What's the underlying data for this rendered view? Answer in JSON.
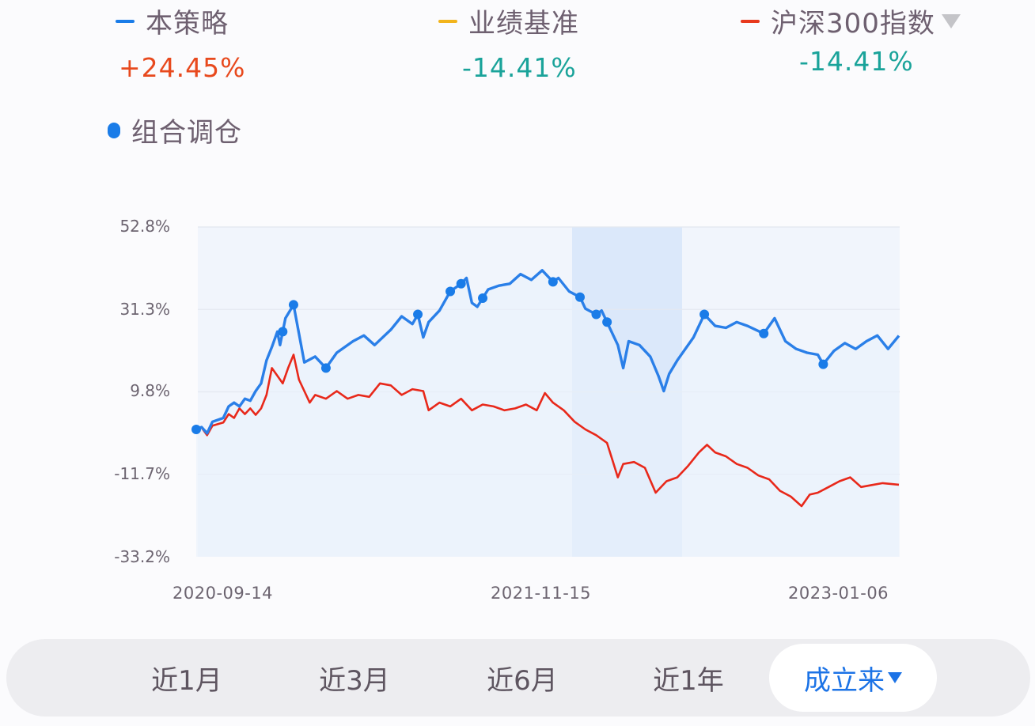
{
  "legend": {
    "items": [
      {
        "label": "本策略",
        "value": "+24.45%",
        "color": "#1a7ce8",
        "value_color": "#e8491d"
      },
      {
        "label": "业绩基准",
        "value": "-14.41%",
        "color": "#f2b41c",
        "value_color": "#1aa39a"
      },
      {
        "label": "沪深300指数",
        "value": "-14.41%",
        "color": "#e8391d",
        "value_color": "#1aa39a",
        "has_dropdown": true
      }
    ],
    "rebalance_marker": {
      "label": "组合调仓",
      "color": "#1a7ce8"
    }
  },
  "period_tabs": {
    "items": [
      {
        "label": "近1月",
        "active": false
      },
      {
        "label": "近3月",
        "active": false
      },
      {
        "label": "近6月",
        "active": false
      },
      {
        "label": "近1年",
        "active": false
      },
      {
        "label": "成立来",
        "active": true
      }
    ],
    "active_color": "#1c73e6"
  },
  "chart_data": {
    "type": "line",
    "title": "",
    "xlabel": "",
    "ylabel": "",
    "x_tick_labels": [
      "2020-09-14",
      "2021-11-15",
      "2023-01-06"
    ],
    "y_tick_labels": [
      "52.8%",
      "31.3%",
      "9.8%",
      "-11.7%",
      "-33.2%"
    ],
    "ylim": [
      -33.2,
      52.8
    ],
    "grid": true,
    "legend_position": "top",
    "shaded_region": {
      "approx_start": "2021-11-15",
      "approx_end": "2022-04-26",
      "color": "#dbe8fa"
    },
    "series": [
      {
        "name": "本策略",
        "color": "#1a7ce8",
        "final_return": "+24.45%",
        "approx_points": [
          [
            0,
            0.0
          ],
          [
            0.01,
            0.6
          ],
          [
            0.02,
            -1.0
          ],
          [
            0.03,
            2.0
          ],
          [
            0.05,
            3.0
          ],
          [
            0.06,
            6.0
          ],
          [
            0.07,
            7.0
          ],
          [
            0.08,
            6.0
          ],
          [
            0.09,
            8.0
          ],
          [
            0.1,
            7.5
          ],
          [
            0.11,
            10.0
          ],
          [
            0.12,
            12.0
          ],
          [
            0.13,
            18.0
          ],
          [
            0.14,
            21.5
          ],
          [
            0.15,
            25.5
          ],
          [
            0.155,
            22.0
          ],
          [
            0.165,
            29.0
          ],
          [
            0.18,
            32.5
          ],
          [
            0.19,
            25.0
          ],
          [
            0.2,
            17.5
          ],
          [
            0.22,
            19.0
          ],
          [
            0.24,
            16.0
          ],
          [
            0.26,
            20.0
          ],
          [
            0.29,
            23.0
          ],
          [
            0.31,
            24.5
          ],
          [
            0.33,
            22.0
          ],
          [
            0.36,
            26.0
          ],
          [
            0.38,
            29.5
          ],
          [
            0.4,
            27.5
          ],
          [
            0.41,
            30.0
          ],
          [
            0.42,
            24.0
          ],
          [
            0.43,
            28.0
          ],
          [
            0.45,
            31.0
          ],
          [
            0.47,
            36.0
          ],
          [
            0.49,
            38.0
          ],
          [
            0.5,
            39.5
          ],
          [
            0.51,
            33.0
          ],
          [
            0.52,
            32.0
          ],
          [
            0.54,
            36.5
          ],
          [
            0.56,
            37.5
          ],
          [
            0.58,
            38.0
          ],
          [
            0.6,
            40.5
          ],
          [
            0.62,
            39.0
          ],
          [
            0.64,
            41.5
          ],
          [
            0.66,
            38.5
          ],
          [
            0.67,
            39.5
          ],
          [
            0.69,
            36.0
          ],
          [
            0.71,
            34.5
          ],
          [
            0.72,
            31.5
          ],
          [
            0.74,
            30.0
          ],
          [
            0.75,
            31.0
          ],
          [
            0.76,
            28.0
          ],
          [
            0.78,
            22.0
          ],
          [
            0.79,
            16.0
          ],
          [
            0.8,
            23.0
          ],
          [
            0.82,
            22.0
          ],
          [
            0.84,
            19.0
          ],
          [
            0.855,
            14.0
          ],
          [
            0.865,
            10.0
          ],
          [
            0.875,
            14.5
          ],
          [
            0.89,
            18.0
          ],
          [
            0.92,
            24.0
          ],
          [
            0.94,
            30.0
          ],
          [
            0.96,
            27.0
          ],
          [
            0.98,
            26.5
          ],
          [
            1.0,
            28.0
          ],
          [
            1.02,
            27.0
          ],
          [
            1.05,
            25.0
          ],
          [
            1.07,
            29.0
          ],
          [
            1.09,
            23.0
          ],
          [
            1.11,
            21.0
          ],
          [
            1.13,
            20.0
          ],
          [
            1.15,
            19.5
          ],
          [
            1.16,
            17.0
          ],
          [
            1.18,
            20.5
          ],
          [
            1.2,
            22.5
          ],
          [
            1.22,
            21.0
          ],
          [
            1.24,
            23.0
          ],
          [
            1.26,
            24.5
          ],
          [
            1.28,
            21.0
          ],
          [
            1.3,
            24.45
          ]
        ],
        "rebalance_markers_x": [
          0.0,
          0.16,
          0.18,
          0.24,
          0.41,
          0.47,
          0.49,
          0.53,
          0.66,
          0.71,
          0.74,
          0.76,
          0.94,
          1.05,
          1.16
        ]
      },
      {
        "name": "沪深300指数",
        "color": "#e8391d",
        "final_return": "-14.41%",
        "approx_points": [
          [
            0,
            0.0
          ],
          [
            0.01,
            0.5
          ],
          [
            0.02,
            -1.5
          ],
          [
            0.03,
            1.0
          ],
          [
            0.05,
            1.8
          ],
          [
            0.06,
            4.0
          ],
          [
            0.07,
            3.0
          ],
          [
            0.08,
            5.5
          ],
          [
            0.09,
            4.0
          ],
          [
            0.1,
            5.5
          ],
          [
            0.11,
            3.8
          ],
          [
            0.12,
            5.5
          ],
          [
            0.13,
            9.0
          ],
          [
            0.14,
            16.0
          ],
          [
            0.15,
            14.0
          ],
          [
            0.16,
            12.0
          ],
          [
            0.17,
            16.0
          ],
          [
            0.18,
            19.5
          ],
          [
            0.19,
            13.0
          ],
          [
            0.2,
            10.0
          ],
          [
            0.21,
            7.0
          ],
          [
            0.22,
            9.0
          ],
          [
            0.24,
            8.0
          ],
          [
            0.26,
            10.0
          ],
          [
            0.28,
            8.0
          ],
          [
            0.3,
            9.0
          ],
          [
            0.32,
            8.5
          ],
          [
            0.34,
            12.0
          ],
          [
            0.36,
            11.5
          ],
          [
            0.38,
            9.0
          ],
          [
            0.4,
            10.5
          ],
          [
            0.42,
            10.0
          ],
          [
            0.43,
            5.0
          ],
          [
            0.45,
            7.0
          ],
          [
            0.47,
            6.0
          ],
          [
            0.49,
            8.0
          ],
          [
            0.51,
            5.0
          ],
          [
            0.53,
            6.5
          ],
          [
            0.55,
            6.0
          ],
          [
            0.57,
            5.0
          ],
          [
            0.59,
            5.5
          ],
          [
            0.61,
            6.5
          ],
          [
            0.63,
            5.0
          ],
          [
            0.645,
            9.5
          ],
          [
            0.66,
            7.0
          ],
          [
            0.68,
            5.0
          ],
          [
            0.7,
            2.0
          ],
          [
            0.72,
            0.0
          ],
          [
            0.74,
            -1.5
          ],
          [
            0.76,
            -3.5
          ],
          [
            0.77,
            -8.0
          ],
          [
            0.78,
            -12.5
          ],
          [
            0.79,
            -9.0
          ],
          [
            0.81,
            -8.5
          ],
          [
            0.83,
            -10.0
          ],
          [
            0.85,
            -16.5
          ],
          [
            0.87,
            -13.5
          ],
          [
            0.89,
            -12.5
          ],
          [
            0.91,
            -9.5
          ],
          [
            0.93,
            -6.0
          ],
          [
            0.945,
            -4.0
          ],
          [
            0.96,
            -6.0
          ],
          [
            0.98,
            -7.0
          ],
          [
            1.0,
            -9.0
          ],
          [
            1.02,
            -10.0
          ],
          [
            1.04,
            -12.0
          ],
          [
            1.06,
            -13.0
          ],
          [
            1.08,
            -16.0
          ],
          [
            1.1,
            -17.5
          ],
          [
            1.12,
            -20.0
          ],
          [
            1.135,
            -17.0
          ],
          [
            1.15,
            -16.5
          ],
          [
            1.17,
            -15.0
          ],
          [
            1.19,
            -13.5
          ],
          [
            1.21,
            -12.5
          ],
          [
            1.23,
            -15.0
          ],
          [
            1.25,
            -14.5
          ],
          [
            1.27,
            -14.0
          ],
          [
            1.3,
            -14.41
          ]
        ]
      }
    ],
    "x_note": "approx_points x in years since 2020-09-14; y in percent cumulative return (traced)"
  }
}
